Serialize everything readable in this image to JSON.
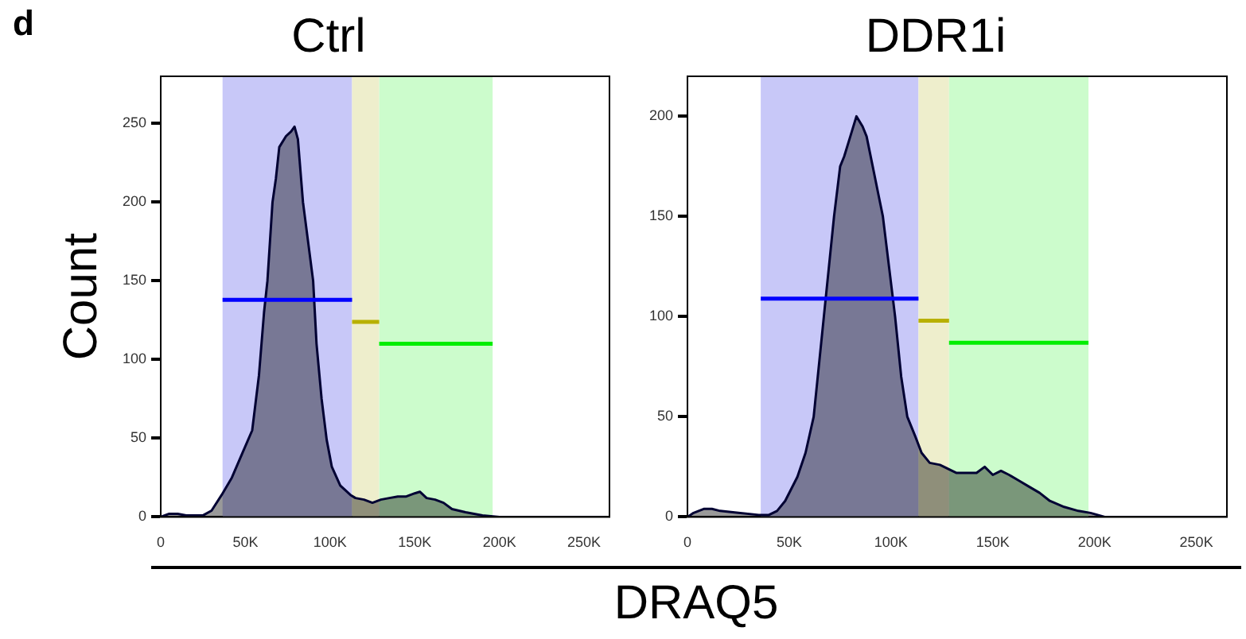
{
  "chart_data": [
    {
      "type": "area",
      "title": "Ctrl",
      "ylabel": "Count",
      "xlabel": "DRAQ5",
      "annotations": [
        "d"
      ],
      "legend": false,
      "grid": false,
      "xlim": [
        0,
        265000
      ],
      "xticks": [
        0,
        {
          "value": 50000,
          "label": "50K"
        },
        {
          "value": 100000,
          "label": "100K"
        },
        {
          "value": 150000,
          "label": "150K"
        },
        {
          "value": 200000,
          "label": "200K"
        },
        {
          "value": 250000,
          "label": "250K"
        }
      ],
      "ylim": [
        0,
        280
      ],
      "yticks": [
        0,
        50,
        100,
        150,
        200,
        250
      ],
      "bands": [
        {
          "axis": "x",
          "from": 36500,
          "to": 113000,
          "color": "#c8c8f8"
        },
        {
          "axis": "x",
          "from": 113000,
          "to": 129000,
          "color": "#eeeecc"
        },
        {
          "axis": "x",
          "from": 129000,
          "to": 196000,
          "color": "#ccfccc"
        }
      ],
      "series": [
        {
          "color": "#000033",
          "x": [
            0,
            5000,
            10000,
            15000,
            25000,
            30000,
            36000,
            42000,
            48000,
            54000,
            58000,
            61000,
            63000,
            66000,
            68000,
            70000,
            74000,
            77000,
            79000,
            81000,
            84000,
            87000,
            90000,
            92000,
            95000,
            98000,
            101000,
            106000,
            112000,
            115000,
            120000,
            125000,
            130000,
            135000,
            140000,
            145000,
            150000,
            153000,
            157000,
            162000,
            167000,
            172000,
            180000,
            190000,
            200000,
            220000,
            262000
          ],
          "values": [
            0,
            2,
            2,
            1,
            1,
            4,
            14,
            25,
            40,
            55,
            90,
            130,
            150,
            200,
            215,
            235,
            242,
            245,
            248,
            240,
            200,
            175,
            150,
            110,
            75,
            49,
            32,
            20,
            14,
            12,
            11,
            9,
            11,
            12,
            13,
            13,
            15,
            16,
            12,
            11,
            9,
            5,
            3,
            1,
            0,
            0,
            0
          ]
        },
        {
          "type": "line",
          "color": "#0000ff",
          "x": [
            36500,
            113000
          ],
          "values": [
            138,
            138
          ]
        },
        {
          "type": "line",
          "color": "#b8b000",
          "x": [
            113000,
            129000
          ],
          "values": [
            124,
            124
          ]
        },
        {
          "type": "line",
          "color": "#00ee00",
          "x": [
            129000,
            196000
          ],
          "values": [
            110,
            110
          ]
        }
      ]
    },
    {
      "type": "area",
      "title": "DDR1i",
      "legend": false,
      "grid": false,
      "xlim": [
        0,
        265000
      ],
      "xticks": [
        0,
        {
          "value": 50000,
          "label": "50K"
        },
        {
          "value": 100000,
          "label": "100K"
        },
        {
          "value": 150000,
          "label": "150K"
        },
        {
          "value": 200000,
          "label": "200K"
        },
        {
          "value": 250000,
          "label": "250K"
        }
      ],
      "ylim": [
        0,
        220
      ],
      "yticks": [
        0,
        50,
        100,
        150,
        200
      ],
      "bands": [
        {
          "axis": "x",
          "from": 36000,
          "to": 113500,
          "color": "#c8c8f8"
        },
        {
          "axis": "x",
          "from": 113500,
          "to": 128500,
          "color": "#eeeecc"
        },
        {
          "axis": "x",
          "from": 128500,
          "to": 197000,
          "color": "#ccfccc"
        }
      ],
      "series": [
        {
          "color": "#000033",
          "x": [
            0,
            3000,
            8000,
            12000,
            16000,
            25000,
            35000,
            40000,
            44000,
            48000,
            54000,
            58000,
            62000,
            65000,
            67000,
            70000,
            72000,
            75000,
            77000,
            80000,
            83000,
            86000,
            88000,
            91000,
            94000,
            96000,
            99000,
            102000,
            105000,
            108000,
            112000,
            115000,
            119000,
            124000,
            128000,
            132000,
            137000,
            142000,
            146000,
            150000,
            154000,
            158000,
            163000,
            168000,
            173000,
            178000,
            185000,
            192000,
            198000,
            205000,
            230000,
            262000
          ],
          "values": [
            0,
            2,
            4,
            4,
            3,
            2,
            1,
            1,
            3,
            8,
            20,
            32,
            50,
            80,
            100,
            130,
            150,
            175,
            180,
            190,
            200,
            195,
            190,
            175,
            160,
            150,
            125,
            100,
            70,
            50,
            40,
            32,
            27,
            26,
            24,
            22,
            22,
            22,
            25,
            21,
            23,
            21,
            18,
            15,
            12,
            8,
            5,
            3,
            2,
            0,
            0,
            0
          ]
        },
        {
          "type": "line",
          "color": "#0000ff",
          "x": [
            36000,
            113500
          ],
          "values": [
            109,
            109
          ]
        },
        {
          "type": "line",
          "color": "#b8b000",
          "x": [
            113500,
            128500
          ],
          "values": [
            98,
            98
          ]
        },
        {
          "type": "line",
          "color": "#00ee00",
          "x": [
            128500,
            197000
          ],
          "values": [
            87,
            87
          ]
        }
      ]
    }
  ]
}
